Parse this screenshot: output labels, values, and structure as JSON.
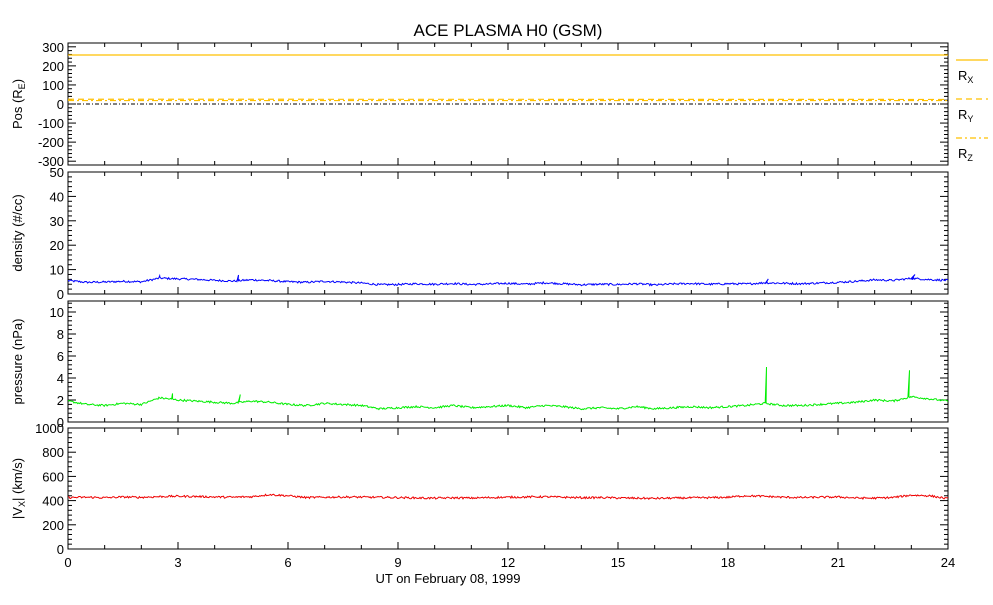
{
  "chart_data": {
    "title": "ACE PLASMA H0 (GSM)",
    "xlabel": "UT on February 08, 1999",
    "x_ticks": [
      0,
      3,
      6,
      9,
      12,
      15,
      18,
      21,
      24
    ],
    "xlim": [
      0,
      24
    ],
    "panels": [
      {
        "id": "pos",
        "type": "line",
        "ylabel": "Pos (R",
        "ylabel_sub": "E",
        "ylabel_tail": ")",
        "ylim": [
          -320,
          320
        ],
        "y_ticks": [
          300,
          200,
          100,
          0,
          -100,
          -200,
          -300
        ],
        "zero_line": true,
        "series": [
          {
            "name": "R",
            "sub": "X",
            "color": "#ffc000",
            "style": "solid",
            "values": [
              257,
              257
            ]
          },
          {
            "name": "R",
            "sub": "Y",
            "color": "#ffc000",
            "style": "dash",
            "values": [
              25,
              24
            ]
          },
          {
            "name": "R",
            "sub": "Z",
            "color": "#ffc000",
            "style": "dashdot",
            "values": [
              18,
              18
            ]
          }
        ]
      },
      {
        "id": "density",
        "type": "line",
        "ylabel": "density (#/cc)",
        "ylim": [
          0,
          50
        ],
        "y_ticks": [
          0,
          10,
          20,
          30,
          40,
          50
        ],
        "color": "#0000ff",
        "x": [
          0,
          0.5,
          1,
          1.5,
          2,
          2.5,
          3,
          3.5,
          4,
          4.5,
          5,
          5.5,
          6,
          6.5,
          7,
          7.5,
          8,
          8.5,
          9,
          9.5,
          10,
          10.5,
          11,
          11.5,
          12,
          12.5,
          13,
          13.5,
          14,
          14.5,
          15,
          15.5,
          16,
          16.5,
          17,
          17.5,
          18,
          18.5,
          19,
          19.5,
          20,
          20.5,
          21,
          21.5,
          22,
          22.5,
          23,
          23.5,
          24
        ],
        "values": [
          5.5,
          4.8,
          4.9,
          5.2,
          5.0,
          6.5,
          6.2,
          6.0,
          5.6,
          5.3,
          5.8,
          5.5,
          5.0,
          4.8,
          5.2,
          4.9,
          4.5,
          3.8,
          3.9,
          4.2,
          4.0,
          4.3,
          3.9,
          4.1,
          4.4,
          4.0,
          4.6,
          4.2,
          3.8,
          4.0,
          3.9,
          4.2,
          3.7,
          4.1,
          4.3,
          4.0,
          4.2,
          4.1,
          4.6,
          4.4,
          4.2,
          4.5,
          4.8,
          5.2,
          5.8,
          5.6,
          6.4,
          5.9,
          5.6
        ],
        "spikes": [
          [
            4.65,
            7.8
          ],
          [
            2.5,
            7.5
          ],
          [
            19.1,
            6.2
          ],
          [
            23.1,
            8.0
          ]
        ]
      },
      {
        "id": "pressure",
        "type": "line",
        "ylabel": "pressure (nPa)",
        "ylim": [
          0,
          11
        ],
        "y_ticks": [
          0,
          2,
          4,
          6,
          8,
          10
        ],
        "color": "#00ee00",
        "x": [
          0,
          0.5,
          1,
          1.5,
          2,
          2.5,
          3,
          3.5,
          4,
          4.5,
          5,
          5.5,
          6,
          6.5,
          7,
          7.5,
          8,
          8.5,
          9,
          9.5,
          10,
          10.5,
          11,
          11.5,
          12,
          12.5,
          13,
          13.5,
          14,
          14.5,
          15,
          15.5,
          16,
          16.5,
          17,
          17.5,
          18,
          18.5,
          19,
          19.5,
          20,
          20.5,
          21,
          21.5,
          22,
          22.5,
          23,
          23.5,
          24
        ],
        "values": [
          1.9,
          1.6,
          1.5,
          1.7,
          1.6,
          2.2,
          2.0,
          1.9,
          1.8,
          1.7,
          1.9,
          1.8,
          1.6,
          1.5,
          1.7,
          1.6,
          1.5,
          1.2,
          1.3,
          1.4,
          1.3,
          1.5,
          1.3,
          1.4,
          1.5,
          1.3,
          1.5,
          1.4,
          1.2,
          1.3,
          1.2,
          1.4,
          1.2,
          1.3,
          1.4,
          1.3,
          1.4,
          1.5,
          1.7,
          1.5,
          1.5,
          1.6,
          1.7,
          1.8,
          2.0,
          1.9,
          2.3,
          2.1,
          1.9
        ],
        "spikes": [
          [
            19.05,
            5.0
          ],
          [
            22.95,
            4.7
          ],
          [
            2.85,
            2.6
          ],
          [
            4.7,
            2.5
          ]
        ]
      },
      {
        "id": "vx",
        "type": "line",
        "ylabel": "|V",
        "ylabel_sub": "X",
        "ylabel_tail": "| (km/s)",
        "ylim": [
          0,
          1000
        ],
        "y_ticks": [
          0,
          200,
          400,
          600,
          800,
          1000
        ],
        "color": "#ee0000",
        "x": [
          0,
          0.5,
          1,
          1.5,
          2,
          2.5,
          3,
          3.5,
          4,
          4.5,
          5,
          5.5,
          6,
          6.5,
          7,
          7.5,
          8,
          8.5,
          9,
          9.5,
          10,
          10.5,
          11,
          11.5,
          12,
          12.5,
          13,
          13.5,
          14,
          14.5,
          15,
          15.5,
          16,
          16.5,
          17,
          17.5,
          18,
          18.5,
          19,
          19.5,
          20,
          20.5,
          21,
          21.5,
          22,
          22.5,
          23,
          23.5,
          24
        ],
        "values": [
          425,
          428,
          424,
          430,
          427,
          433,
          436,
          434,
          430,
          428,
          432,
          450,
          440,
          425,
          428,
          430,
          429,
          427,
          425,
          422,
          420,
          423,
          421,
          425,
          428,
          430,
          432,
          428,
          424,
          425,
          422,
          420,
          418,
          421,
          423,
          424,
          428,
          440,
          435,
          428,
          425,
          428,
          430,
          422,
          420,
          426,
          445,
          440,
          415
        ],
        "spikes": []
      }
    ]
  }
}
